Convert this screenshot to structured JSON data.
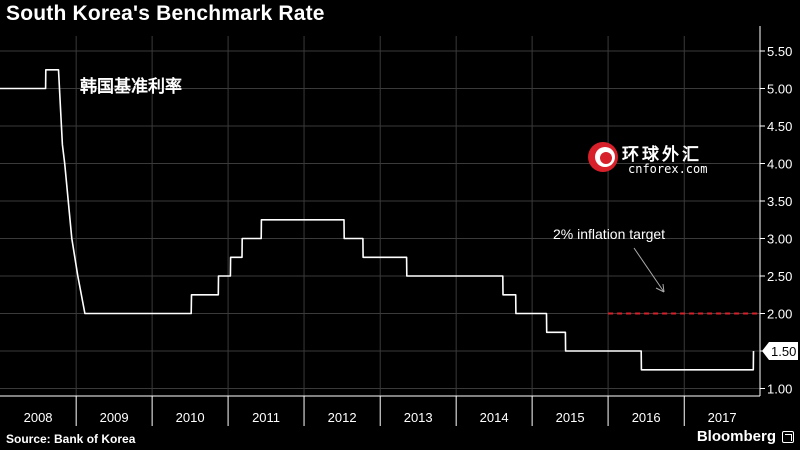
{
  "title": "South Korea's Benchmark Rate",
  "subtitle_cn": "韩国基准利率",
  "source": "Source: Bank of Korea",
  "brand": "Bloomberg",
  "watermark": {
    "cn": "环球外汇",
    "en": "cnforex.com"
  },
  "annotation": "2% inflation target",
  "last_value_label": "1.50",
  "colors": {
    "background": "#000000",
    "line": "#ffffff",
    "grid": "#3a3a3a",
    "target_line": "#d8202a",
    "watermark_red": "#d8202a"
  },
  "chart_data": {
    "type": "line",
    "title": "South Korea's Benchmark Rate",
    "subtitle": "韩国基准利率",
    "xlabel": "",
    "ylabel": "",
    "x_tick_labels": [
      "2008",
      "2009",
      "2010",
      "2011",
      "2012",
      "2013",
      "2014",
      "2015",
      "2016",
      "2017"
    ],
    "y_tick_labels": [
      "1.00",
      "1.50",
      "2.00",
      "2.50",
      "3.00",
      "3.50",
      "4.00",
      "4.50",
      "5.00",
      "5.50"
    ],
    "xlim": [
      "2008-01-01",
      "2017-12-31"
    ],
    "ylim": [
      0.9,
      5.7
    ],
    "y_axis_position": "right",
    "grid": true,
    "series": [
      {
        "values": [
          [
            "2008-01-01",
            5.0
          ],
          [
            "2008-08-07",
            5.0
          ],
          [
            "2008-08-08",
            5.25
          ],
          [
            "2008-10-08",
            5.25
          ],
          [
            "2008-10-27",
            4.25
          ],
          [
            "2008-11-07",
            4.0
          ],
          [
            "2008-12-11",
            3.0
          ],
          [
            "2009-01-09",
            2.5
          ],
          [
            "2009-02-12",
            2.0
          ],
          [
            "2010-07-08",
            2.0
          ],
          [
            "2010-07-09",
            2.25
          ],
          [
            "2010-11-15",
            2.25
          ],
          [
            "2010-11-16",
            2.5
          ],
          [
            "2011-01-12",
            2.5
          ],
          [
            "2011-01-13",
            2.75
          ],
          [
            "2011-03-09",
            2.75
          ],
          [
            "2011-03-10",
            3.0
          ],
          [
            "2011-06-09",
            3.0
          ],
          [
            "2011-06-10",
            3.25
          ],
          [
            "2012-07-11",
            3.25
          ],
          [
            "2012-07-12",
            3.0
          ],
          [
            "2012-10-10",
            3.0
          ],
          [
            "2012-10-11",
            2.75
          ],
          [
            "2013-05-08",
            2.75
          ],
          [
            "2013-05-09",
            2.5
          ],
          [
            "2014-08-13",
            2.5
          ],
          [
            "2014-08-14",
            2.25
          ],
          [
            "2014-10-14",
            2.25
          ],
          [
            "2014-10-15",
            2.0
          ],
          [
            "2015-03-11",
            2.0
          ],
          [
            "2015-03-12",
            1.75
          ],
          [
            "2015-06-10",
            1.75
          ],
          [
            "2015-06-11",
            1.5
          ],
          [
            "2016-06-08",
            1.5
          ],
          [
            "2016-06-09",
            1.25
          ],
          [
            "2017-11-29",
            1.25
          ],
          [
            "2017-11-30",
            1.5
          ]
        ]
      }
    ],
    "reference_lines": [
      {
        "label": "2% inflation target",
        "y": 2.0,
        "x_start": "2016-01-01",
        "x_end": "2017-12-31",
        "style": "dashed"
      }
    ],
    "annotations": [
      {
        "text": "2% inflation target"
      },
      {
        "text": "韩国基准利率"
      },
      {
        "text": "1.50",
        "style": "value-tag"
      }
    ]
  }
}
